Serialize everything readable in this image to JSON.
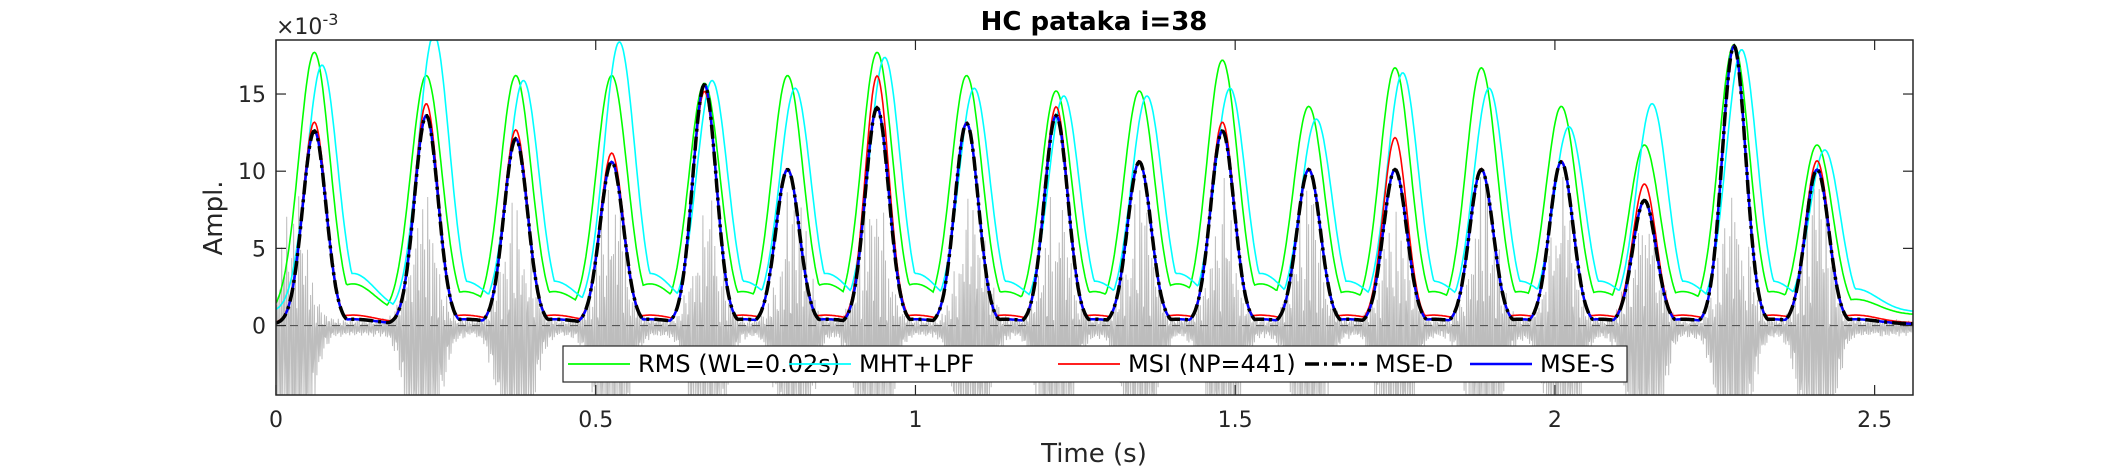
{
  "chart_data": {
    "type": "line",
    "title": "HC pataka i=38",
    "xlabel": "Time (s)",
    "ylabel": "Ampl.",
    "y_exponent_label": "×10",
    "y_exponent_power": "-3",
    "xlim": [
      0,
      2.56
    ],
    "ylim": [
      -4.5,
      18.5
    ],
    "xticks": [
      0,
      0.5,
      1,
      1.5,
      2,
      2.5
    ],
    "xtick_labels": [
      "0",
      "0.5",
      "1",
      "1.5",
      "2",
      "2.5"
    ],
    "yticks": [
      0,
      5,
      10,
      15
    ],
    "ytick_labels": [
      "0",
      "5",
      "10",
      "15"
    ],
    "grid": false,
    "legend_position": "bottom",
    "zero_reference_line": 0,
    "background_signal": {
      "name": "speech waveform",
      "color": "#bdbdbd",
      "description_peaks": [
        0.03,
        0.23,
        0.375,
        0.525,
        0.675,
        0.81,
        0.935,
        1.09,
        1.22,
        1.35,
        1.48,
        1.615,
        1.75,
        1.89,
        2.01,
        2.14,
        2.28,
        2.41
      ]
    },
    "syllable_peaks_x": [
      0.06,
      0.235,
      0.375,
      0.525,
      0.67,
      0.8,
      0.94,
      1.08,
      1.22,
      1.35,
      1.48,
      1.615,
      1.75,
      1.885,
      2.01,
      2.14,
      2.28,
      2.41
    ],
    "series": [
      {
        "name": "RMS (WL=0.02s)",
        "color": "#00ff00",
        "style": "solid",
        "peaks": [
          17.0,
          15.5,
          15.5,
          15.5,
          15.0,
          15.5,
          17.0,
          15.5,
          14.5,
          14.5,
          16.5,
          13.5,
          16.0,
          16.0,
          13.5,
          11.0,
          17.5,
          11.0
        ],
        "baseline": [
          2.0,
          1.5,
          1.5,
          2.0,
          1.5,
          2.0,
          2.0,
          1.5,
          1.5,
          2.0,
          2.0,
          1.5,
          1.5,
          1.5,
          1.5,
          1.5,
          1.5,
          1.0
        ]
      },
      {
        "name": "MHT+LPF",
        "color": "#00ffff",
        "style": "solid",
        "peaks": [
          16.0,
          18.0,
          15.0,
          17.5,
          15.0,
          14.5,
          16.5,
          14.5,
          14.0,
          14.0,
          14.5,
          12.5,
          15.5,
          14.5,
          12.0,
          13.5,
          17.0,
          10.5
        ],
        "baseline": [
          2.5,
          2.0,
          2.0,
          2.5,
          2.0,
          2.5,
          2.5,
          2.0,
          2.0,
          2.5,
          2.5,
          2.0,
          2.0,
          2.0,
          2.0,
          2.0,
          2.0,
          1.5
        ]
      },
      {
        "name": "MSI (NP=441)",
        "color": "#ff0000",
        "style": "solid",
        "peaks": [
          13.0,
          14.2,
          12.5,
          11.0,
          15.0,
          10.0,
          16.0,
          13.0,
          14.0,
          10.5,
          13.0,
          10.0,
          12.0,
          10.0,
          10.5,
          9.0,
          18.0,
          10.5
        ],
        "baseline": [
          0.5,
          0.5,
          0.5,
          0.5,
          0.5,
          0.5,
          0.5,
          0.5,
          0.5,
          0.5,
          0.5,
          0.5,
          0.5,
          0.5,
          0.5,
          0.5,
          0.5,
          0.5
        ]
      },
      {
        "name": "MSE-D",
        "color": "#000000",
        "style": "dashdot",
        "peaks": [
          12.5,
          13.5,
          12.0,
          10.5,
          15.5,
          10.0,
          14.0,
          13.0,
          13.5,
          10.5,
          12.5,
          10.0,
          10.0,
          10.0,
          10.5,
          8.0,
          18.0,
          10.0
        ],
        "baseline": [
          0.3,
          0.3,
          0.3,
          0.3,
          0.3,
          0.3,
          0.3,
          0.3,
          0.3,
          0.3,
          0.3,
          0.3,
          0.3,
          0.3,
          0.3,
          0.3,
          0.3,
          0.3
        ]
      },
      {
        "name": "MSE-S",
        "color": "#0000ff",
        "style": "solid",
        "peaks": [
          12.5,
          13.5,
          12.0,
          10.5,
          15.5,
          10.0,
          14.0,
          13.0,
          13.5,
          10.5,
          12.5,
          10.0,
          10.0,
          10.0,
          10.5,
          8.0,
          18.0,
          10.0
        ],
        "baseline": [
          0.3,
          0.3,
          0.3,
          0.3,
          0.3,
          0.3,
          0.3,
          0.3,
          0.3,
          0.3,
          0.3,
          0.3,
          0.3,
          0.3,
          0.3,
          0.3,
          0.3,
          0.3
        ]
      }
    ]
  }
}
